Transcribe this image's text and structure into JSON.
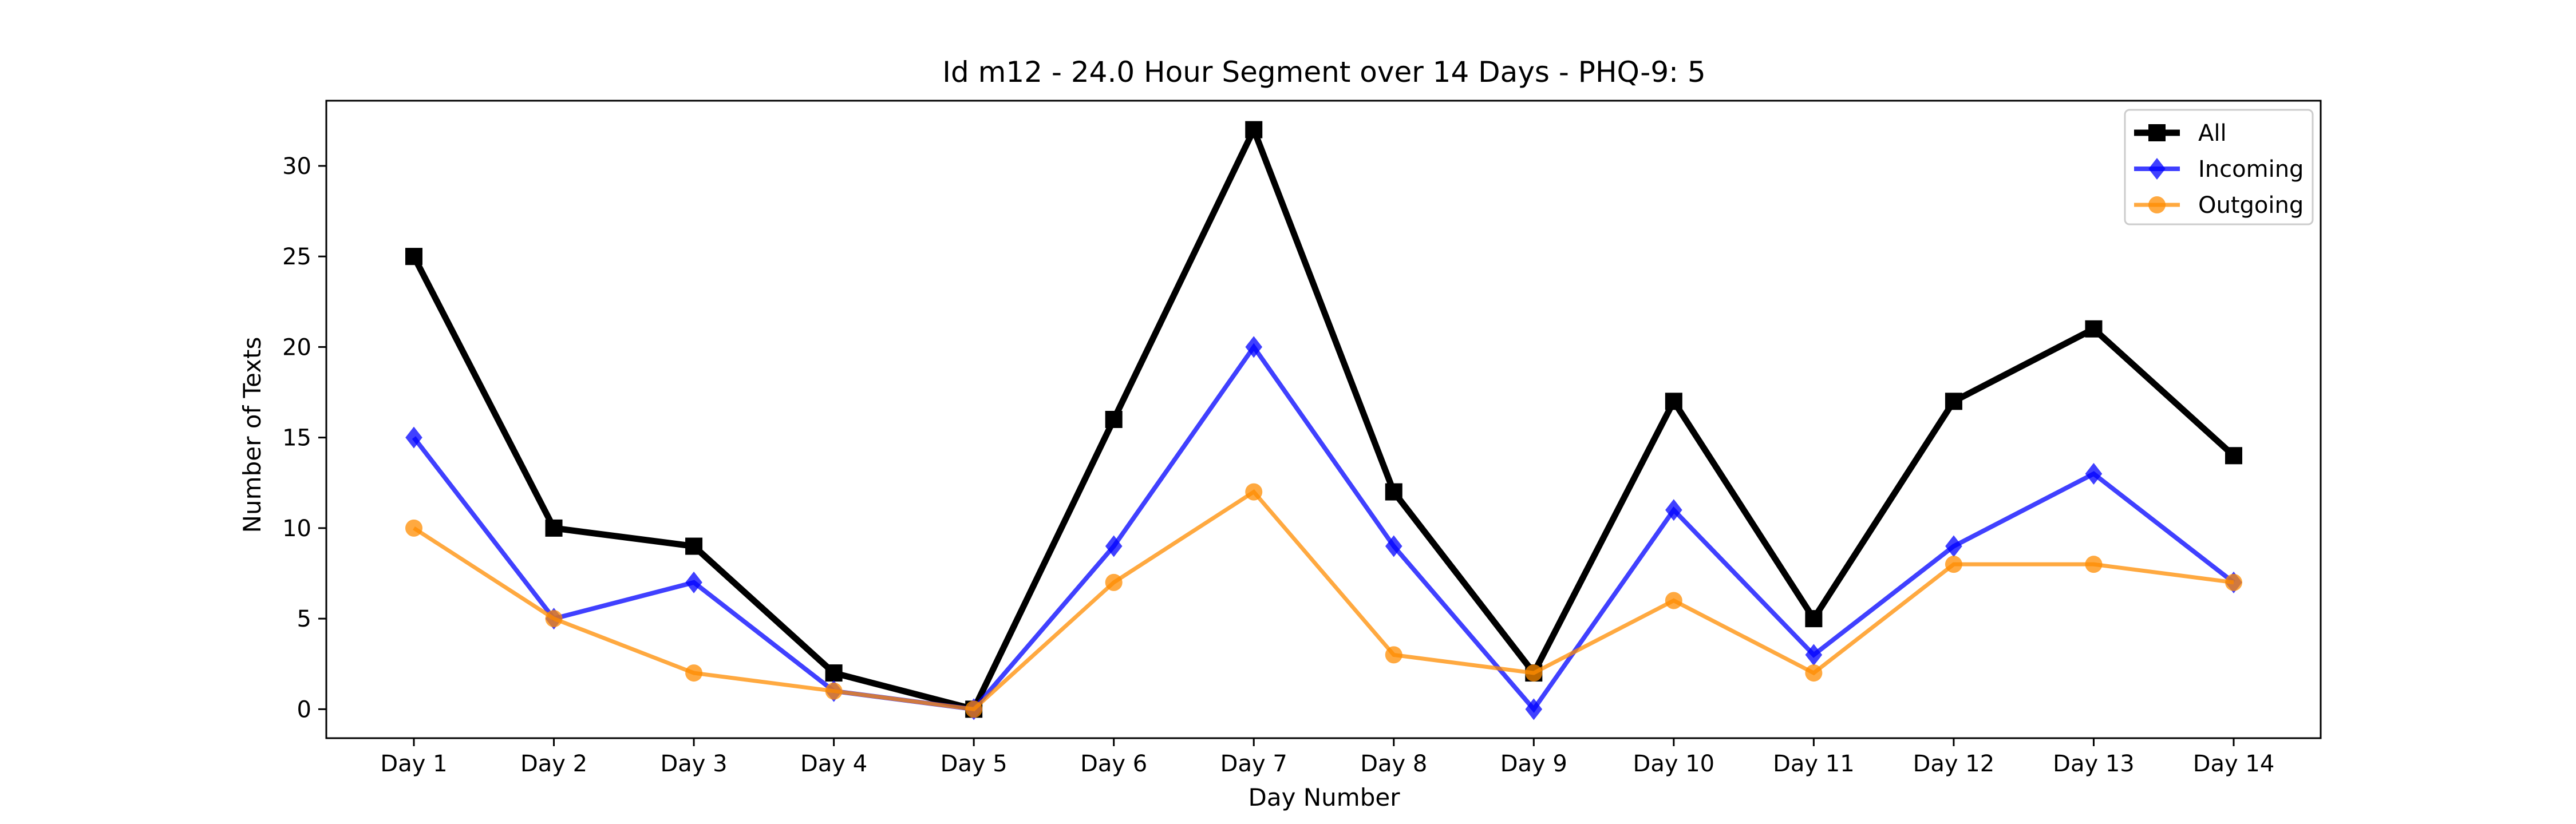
{
  "chart_data": {
    "type": "line",
    "title": "Id m12 - 24.0 Hour Segment over 14 Days - PHQ-9: 5",
    "xlabel": "Day Number",
    "ylabel": "Number of Texts",
    "categories": [
      "Day 1",
      "Day 2",
      "Day 3",
      "Day 4",
      "Day 5",
      "Day 6",
      "Day 7",
      "Day 8",
      "Day 9",
      "Day 10",
      "Day 11",
      "Day 12",
      "Day 13",
      "Day 14"
    ],
    "yticks": [
      0,
      5,
      10,
      15,
      20,
      25,
      30
    ],
    "ylim": [
      -1.6,
      33.6
    ],
    "grid": false,
    "legend_position": "top-right",
    "series": [
      {
        "name": "All",
        "values": [
          25,
          10,
          9,
          2,
          0,
          16,
          32,
          12,
          2,
          17,
          5,
          17,
          21,
          14
        ],
        "color": "#000000",
        "marker": "square"
      },
      {
        "name": "Incoming",
        "values": [
          15,
          5,
          7,
          1,
          0,
          9,
          20,
          9,
          0,
          11,
          3,
          9,
          13,
          7
        ],
        "color": "#0000ff",
        "marker": "diamond"
      },
      {
        "name": "Outgoing",
        "values": [
          10,
          5,
          2,
          1,
          0,
          7,
          12,
          3,
          2,
          6,
          2,
          8,
          8,
          7
        ],
        "color": "#ff8c00",
        "marker": "circle"
      }
    ]
  }
}
